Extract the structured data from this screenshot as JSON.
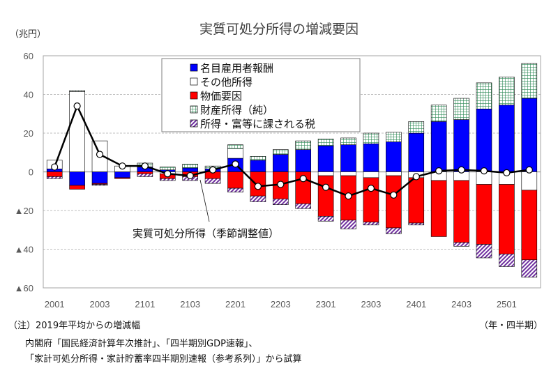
{
  "chart_data": {
    "type": "bar",
    "subtype": "stacked-bar-with-line",
    "title": "実質可処分所得の増減要因",
    "ylabel": "（兆円）",
    "xlabel": "（年・四半期）",
    "ylim": [
      -60,
      60
    ],
    "yticks": [
      60,
      40,
      20,
      0,
      -20,
      -40,
      -60
    ],
    "ytick_labels": [
      "60",
      "40",
      "20",
      "0",
      "▲20",
      "▲40",
      "▲60"
    ],
    "grid": true,
    "legend_position": "top-center",
    "categories": [
      "2001",
      "2002",
      "2003",
      "2004",
      "2101",
      "2102",
      "2103",
      "2104",
      "2201",
      "2202",
      "2203",
      "2204",
      "2301",
      "2302",
      "2303",
      "2304",
      "2401",
      "2402",
      "2403",
      "2404",
      "2501",
      "2502"
    ],
    "xtick_labels": [
      "2001",
      "2003",
      "2101",
      "2103",
      "2201",
      "2203",
      "2301",
      "2303",
      "2401",
      "2403",
      "2501"
    ],
    "series": [
      {
        "name": "名目雇用者報酬",
        "key": "comp",
        "color": "#0000ff",
        "pattern": "solid",
        "values": [
          1.5,
          -7,
          -6,
          -3,
          2.5,
          1,
          2,
          1.5,
          7,
          6,
          9,
          11.5,
          13.5,
          14,
          14.5,
          15.5,
          20,
          26,
          27,
          32.5,
          34.5,
          38
        ]
      },
      {
        "name": "その他所得",
        "key": "other",
        "color": "#ffffff",
        "pattern": "outline",
        "values": [
          4.5,
          41.5,
          16,
          3,
          0,
          -1,
          0,
          0,
          5,
          0,
          0,
          0,
          -2,
          -2,
          -3,
          -2,
          -3,
          -4.5,
          -4.5,
          -6.5,
          -6.5,
          -9.5
        ]
      },
      {
        "name": "物価要因",
        "key": "price",
        "color": "#ff0000",
        "pattern": "solid",
        "values": [
          -2.5,
          -2,
          -0.5,
          -0.5,
          -1,
          -2.5,
          -2.5,
          -3.5,
          -8.5,
          -12.5,
          -14,
          -16.5,
          -21,
          -23,
          -23,
          -27,
          -23.5,
          -29,
          -32,
          -31,
          -36,
          -36
        ]
      },
      {
        "name": "財産所得（純）",
        "key": "property",
        "color": "#2e8b57",
        "pattern": "grid",
        "values": [
          0,
          0.5,
          0,
          0,
          2,
          1.5,
          2,
          1.5,
          2,
          2,
          2.5,
          4.5,
          3.5,
          3.5,
          5.5,
          5,
          6,
          8.5,
          11,
          13.5,
          14.5,
          18
        ]
      },
      {
        "name": "所得・富等に課される税",
        "key": "tax",
        "color": "#7030a0",
        "pattern": "hatch",
        "values": [
          -1,
          0,
          -0.5,
          0,
          -1.5,
          -1,
          -2,
          -2.5,
          -2,
          -3,
          -3,
          -2.5,
          -2.5,
          -4.5,
          -1.5,
          -3,
          -1,
          0,
          -2,
          -7,
          -6.5,
          -9
        ]
      }
    ],
    "line": {
      "name": "実質可処分所得（季節調整値）",
      "values": [
        2.5,
        34,
        9,
        3,
        3,
        -1,
        -2,
        1,
        4,
        -7.5,
        -6.5,
        -3.5,
        -8,
        -12.5,
        -8.5,
        -12,
        -2.5,
        0.5,
        1,
        0.5,
        -0.5,
        1
      ]
    }
  },
  "labels": {
    "title": "実質可処分所得の増減要因",
    "y_unit": "（兆円）",
    "x_unit": "（年・四半期）",
    "line_annotation": "実質可処分所得（季節調整値）",
    "note1": "（注）2019年平均からの増減幅",
    "note2": "内閣府「国民経済計算年次推計」、「四半期別GDP速報」、",
    "note3": "「家計可処分所得・家計貯蓄率四半期別速報（参考系列）」から試算"
  }
}
